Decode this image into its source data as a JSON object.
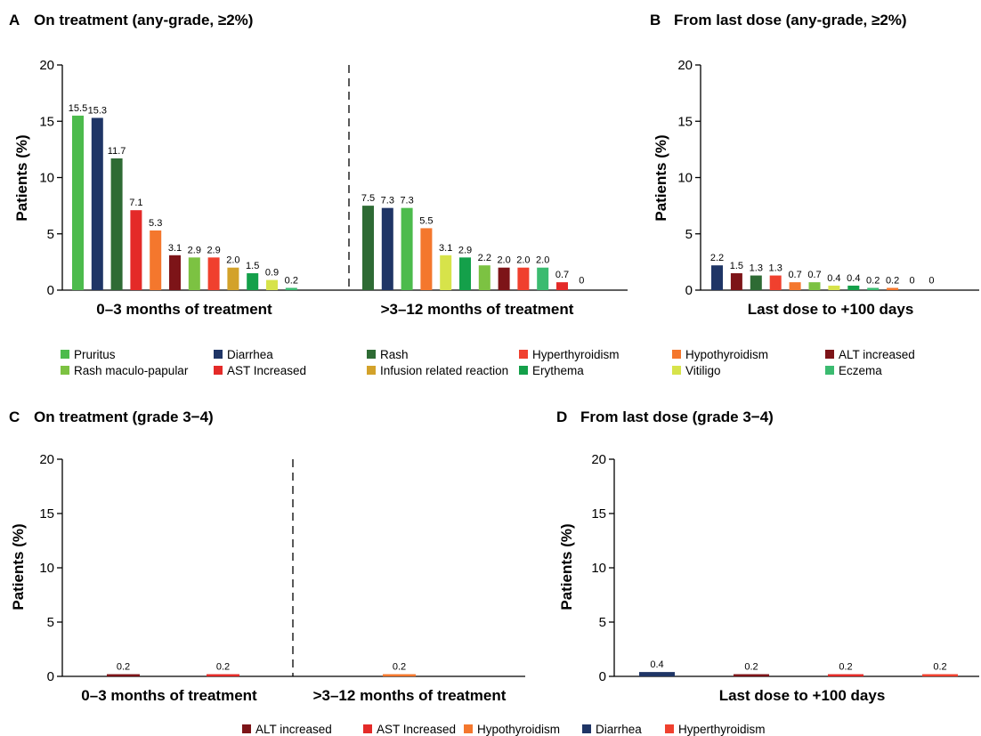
{
  "colors": {
    "Pruritus": "#4cbb4c",
    "Diarrhea": "#1f3566",
    "Rash": "#2e6b34",
    "Hyperthyroidism": "#f0402e",
    "Hypothyroidism": "#f4772d",
    "ALT increased": "#7d1418",
    "Rash maculo-papular": "#7cc242",
    "AST Increased": "#e42a28",
    "Infusion related reaction": "#d3a22a",
    "Erythema": "#14a04a",
    "Vitiligo": "#d7e34a",
    "Eczema": "#3bbb70"
  },
  "legend_top": [
    "Pruritus",
    "Diarrhea",
    "Rash",
    "Hyperthyroidism",
    "Hypothyroidism",
    "ALT increased",
    "Rash maculo-papular",
    "AST Increased",
    "Infusion related reaction",
    "Erythema",
    "Vitiligo",
    "Eczema"
  ],
  "legend_bottom": [
    "ALT increased",
    "AST Increased",
    "Hypothyroidism",
    "Diarrhea",
    "Hyperthyroidism"
  ],
  "chart_data": [
    {
      "panel": "A",
      "title": "On treatment (any-grade, ≥2%)",
      "type": "bar",
      "ylabel": "Patients (%)",
      "ylim": [
        0,
        20
      ],
      "yticks": [
        0,
        5,
        10,
        15,
        20
      ],
      "groups": [
        {
          "label": "0–3 months of treatment",
          "bars": [
            {
              "category": "Pruritus",
              "value": 15.5,
              "label": "15.5"
            },
            {
              "category": "Diarrhea",
              "value": 15.3,
              "label": "15.3"
            },
            {
              "category": "Rash",
              "value": 11.7,
              "label": "11.7"
            },
            {
              "category": "AST Increased",
              "value": 7.1,
              "label": "7.1"
            },
            {
              "category": "Hypothyroidism",
              "value": 5.3,
              "label": "5.3"
            },
            {
              "category": "ALT increased",
              "value": 3.1,
              "label": "3.1"
            },
            {
              "category": "Rash maculo-papular",
              "value": 2.9,
              "label": "2.9"
            },
            {
              "category": "Hyperthyroidism",
              "value": 2.9,
              "label": "2.9"
            },
            {
              "category": "Infusion related reaction",
              "value": 2.0,
              "label": "2.0"
            },
            {
              "category": "Erythema",
              "value": 1.5,
              "label": "1.5"
            },
            {
              "category": "Vitiligo",
              "value": 0.9,
              "label": "0.9"
            },
            {
              "category": "Eczema",
              "value": 0.2,
              "label": "0.2"
            }
          ]
        },
        {
          "label": ">3–12 months of treatment",
          "bars": [
            {
              "category": "Rash",
              "value": 7.5,
              "label": "7.5"
            },
            {
              "category": "Diarrhea",
              "value": 7.3,
              "label": "7.3"
            },
            {
              "category": "Pruritus",
              "value": 7.3,
              "label": "7.3"
            },
            {
              "category": "Hypothyroidism",
              "value": 5.5,
              "label": "5.5"
            },
            {
              "category": "Vitiligo",
              "value": 3.1,
              "label": "3.1"
            },
            {
              "category": "Erythema",
              "value": 2.9,
              "label": "2.9"
            },
            {
              "category": "Rash maculo-papular",
              "value": 2.2,
              "label": "2.2"
            },
            {
              "category": "ALT increased",
              "value": 2.0,
              "label": "2.0"
            },
            {
              "category": "Hyperthyroidism",
              "value": 2.0,
              "label": "2.0"
            },
            {
              "category": "Eczema",
              "value": 2.0,
              "label": "2.0"
            },
            {
              "category": "AST Increased",
              "value": 0.7,
              "label": "0.7"
            },
            {
              "category": "Infusion related reaction",
              "value": 0,
              "label": "0"
            }
          ]
        }
      ]
    },
    {
      "panel": "B",
      "title": "From last dose (any-grade, ≥2%)",
      "type": "bar",
      "ylabel": "Patients (%)",
      "ylim": [
        0,
        20
      ],
      "yticks": [
        0,
        5,
        10,
        15,
        20
      ],
      "groups": [
        {
          "label": "Last dose to +100 days",
          "bars": [
            {
              "category": "Diarrhea",
              "value": 2.2,
              "label": "2.2"
            },
            {
              "category": "ALT increased",
              "value": 1.5,
              "label": "1.5"
            },
            {
              "category": "Rash",
              "value": 1.3,
              "label": "1.3"
            },
            {
              "category": "Hyperthyroidism",
              "value": 1.3,
              "label": "1.3"
            },
            {
              "category": "Hypothyroidism",
              "value": 0.7,
              "label": "0.7"
            },
            {
              "category": "Rash maculo-papular",
              "value": 0.7,
              "label": "0.7"
            },
            {
              "category": "Vitiligo",
              "value": 0.4,
              "label": "0.4"
            },
            {
              "category": "Erythema",
              "value": 0.4,
              "label": "0.4"
            },
            {
              "category": "Eczema",
              "value": 0.2,
              "label": "0.2"
            },
            {
              "category": "Hypothyroidism",
              "value": 0.2,
              "label": "0.2"
            },
            {
              "category": "Pruritus",
              "value": 0,
              "label": "0"
            },
            {
              "category": "Infusion related reaction",
              "value": 0,
              "label": "0"
            }
          ]
        }
      ]
    },
    {
      "panel": "C",
      "title": "On treatment (grade 3−4)",
      "type": "bar",
      "ylabel": "Patients (%)",
      "ylim": [
        0,
        20
      ],
      "yticks": [
        0,
        5,
        10,
        15,
        20
      ],
      "groups": [
        {
          "label": "0–3 months of treatment",
          "bars": [
            {
              "category": "ALT increased",
              "value": 0.2,
              "label": "0.2"
            },
            {
              "category": "AST Increased",
              "value": 0.2,
              "label": "0.2"
            }
          ]
        },
        {
          "label": ">3–12 months of treatment",
          "bars": [
            {
              "category": "Hypothyroidism",
              "value": 0.2,
              "label": "0.2"
            }
          ]
        }
      ]
    },
    {
      "panel": "D",
      "title": "From last dose (grade 3−4)",
      "type": "bar",
      "ylabel": "Patients (%)",
      "ylim": [
        0,
        20
      ],
      "yticks": [
        0,
        5,
        10,
        15,
        20
      ],
      "groups": [
        {
          "label": "Last dose to +100 days",
          "bars": [
            {
              "category": "Diarrhea",
              "value": 0.4,
              "label": "0.4"
            },
            {
              "category": "ALT increased",
              "value": 0.2,
              "label": "0.2"
            },
            {
              "category": "AST Increased",
              "value": 0.2,
              "label": "0.2"
            },
            {
              "category": "Hyperthyroidism",
              "value": 0.2,
              "label": "0.2"
            }
          ]
        }
      ]
    }
  ]
}
